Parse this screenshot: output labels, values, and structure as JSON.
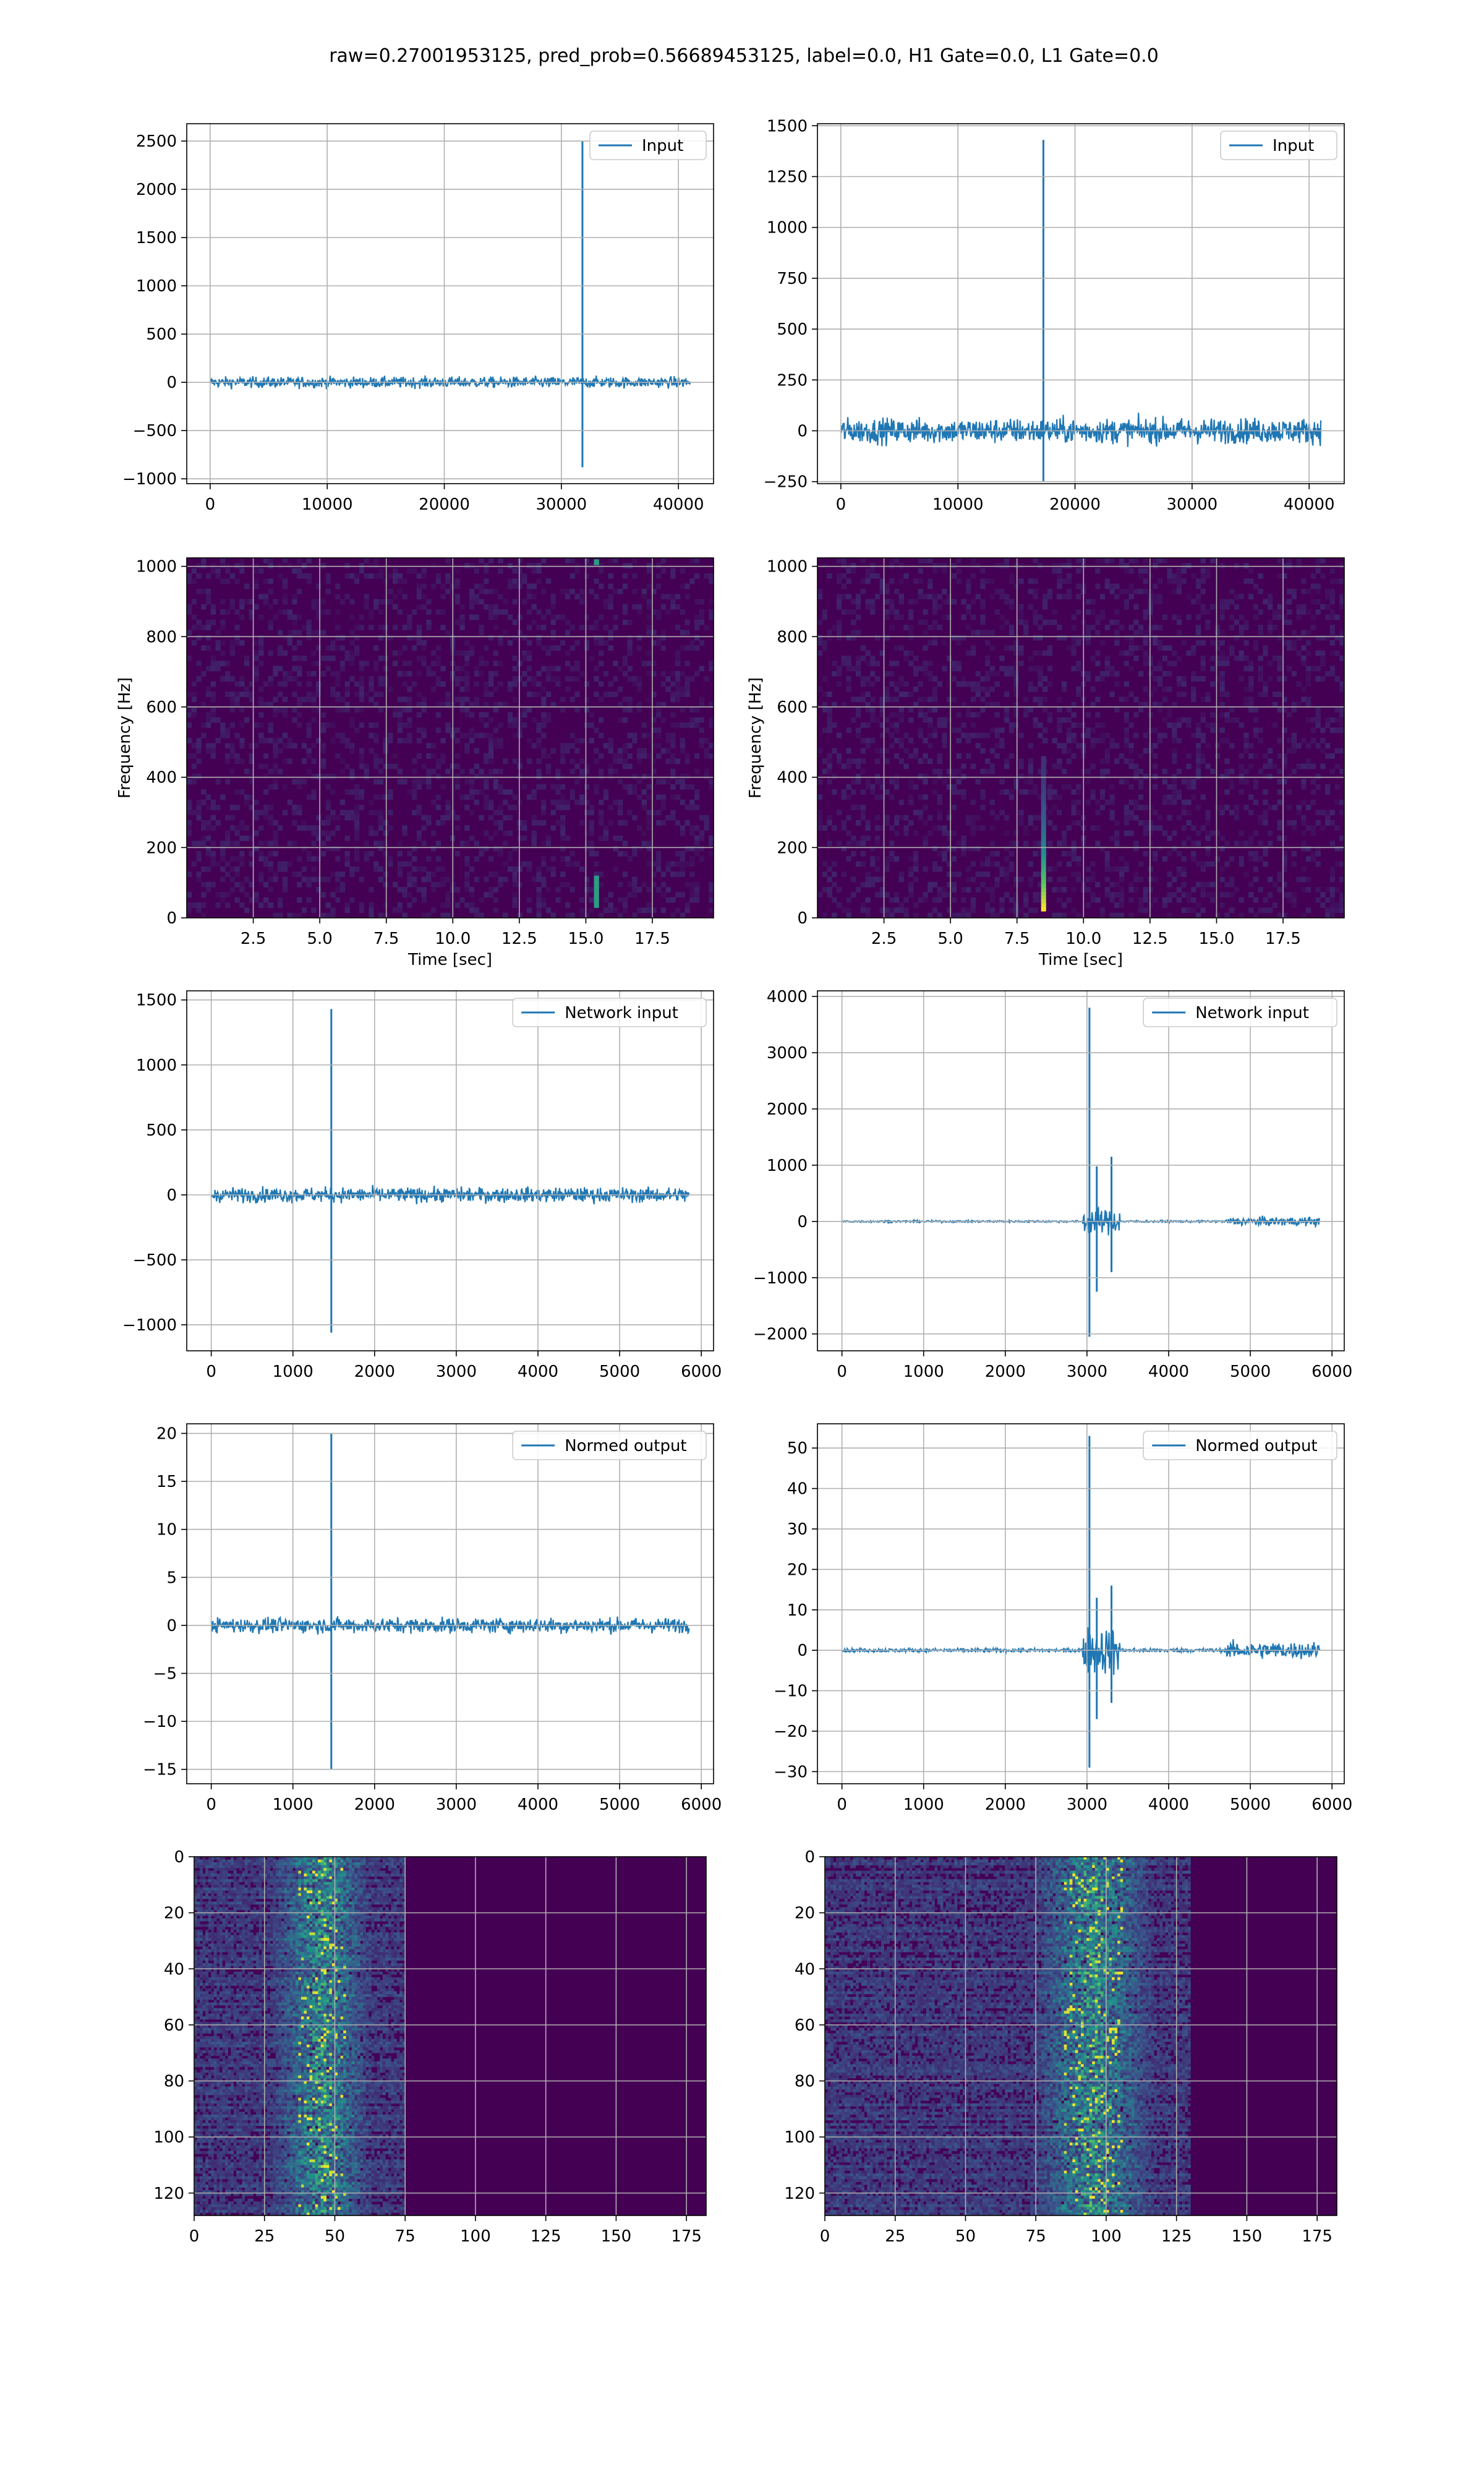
{
  "title": "raw=0.27001953125, pred_prob=0.56689453125, label=0.0, H1 Gate=0.0, L1 Gate=0.0",
  "colors": {
    "line": "#1f77b4",
    "grid": "#b0b0b0",
    "viridis_low": "#440154",
    "viridis_mid": "#21918c",
    "viridis_high": "#fde725"
  },
  "chart_data": [
    {
      "id": "r1c1",
      "type": "line",
      "legend": "Input",
      "legend_position": "upper-right",
      "xlim": [
        -2000,
        43000
      ],
      "ylim": [
        -1050,
        2680
      ],
      "xticks": [
        0,
        10000,
        20000,
        30000,
        40000
      ],
      "yticks": [
        -1000,
        -500,
        0,
        500,
        1000,
        1500,
        2000,
        2500
      ],
      "x_range": [
        0,
        41000
      ],
      "noise_amp": 55,
      "spikes": [
        {
          "x": 31800,
          "y": 2500
        },
        {
          "x": 31800,
          "y": -880
        }
      ],
      "xlabel": "",
      "ylabel": "",
      "grid": true
    },
    {
      "id": "r1c2",
      "type": "line",
      "legend": "Input",
      "legend_position": "upper-right",
      "xlim": [
        -2000,
        43000
      ],
      "ylim": [
        -260,
        1510
      ],
      "xticks": [
        0,
        10000,
        20000,
        30000,
        40000
      ],
      "yticks": [
        -250,
        0,
        250,
        500,
        750,
        1000,
        1250,
        1500
      ],
      "x_range": [
        0,
        41000
      ],
      "noise_amp": 60,
      "spikes": [
        {
          "x": 17300,
          "y": 1430
        },
        {
          "x": 17300,
          "y": -250
        }
      ],
      "xlabel": "",
      "ylabel": "",
      "grid": true
    },
    {
      "id": "r2c1",
      "type": "heatmap",
      "xlabel": "Time [sec]",
      "ylabel": "Frequency [Hz]",
      "xlim": [
        0,
        19.8
      ],
      "ylim": [
        0,
        1024
      ],
      "xticks": [
        2.5,
        5.0,
        7.5,
        10.0,
        12.5,
        15.0,
        17.5
      ],
      "xtick_labels": [
        "2.5",
        "5.0",
        "7.5",
        "10.0",
        "12.5",
        "15.0",
        "17.5"
      ],
      "yticks": [
        0,
        200,
        400,
        600,
        800,
        1000
      ],
      "features": [
        {
          "t": 15.4,
          "f_low": 30,
          "f_high": 120
        },
        {
          "t": 15.4,
          "f_low": 1005,
          "f_high": 1020
        }
      ],
      "grid": true
    },
    {
      "id": "r2c2",
      "type": "heatmap",
      "xlabel": "Time [sec]",
      "ylabel": "Frequency [Hz]",
      "xlim": [
        0,
        19.8
      ],
      "ylim": [
        0,
        1024
      ],
      "xticks": [
        2.5,
        5.0,
        7.5,
        10.0,
        12.5,
        15.0,
        17.5
      ],
      "xtick_labels": [
        "2.5",
        "5.0",
        "7.5",
        "10.0",
        "12.5",
        "15.0",
        "17.5"
      ],
      "yticks": [
        0,
        200,
        400,
        600,
        800,
        1000
      ],
      "features": [
        {
          "t": 8.5,
          "f_low": 20,
          "f_high": 460
        }
      ],
      "grid": true
    },
    {
      "id": "r3c1",
      "type": "line",
      "legend": "Network input",
      "legend_position": "upper-right",
      "xlim": [
        -300,
        6150
      ],
      "ylim": [
        -1200,
        1570
      ],
      "xticks": [
        0,
        1000,
        2000,
        3000,
        4000,
        5000,
        6000
      ],
      "yticks": [
        -1000,
        -500,
        0,
        500,
        1000,
        1500
      ],
      "x_range": [
        0,
        5850
      ],
      "noise_amp": 55,
      "spikes": [
        {
          "x": 1470,
          "y": 1430
        },
        {
          "x": 1470,
          "y": -1060
        }
      ],
      "xlabel": "",
      "ylabel": "",
      "grid": true
    },
    {
      "id": "r3c2",
      "type": "line",
      "legend": "Network input",
      "legend_position": "upper-right",
      "xlim": [
        -300,
        6150
      ],
      "ylim": [
        -2300,
        4100
      ],
      "xticks": [
        0,
        1000,
        2000,
        3000,
        4000,
        5000,
        6000
      ],
      "yticks": [
        -2000,
        -1000,
        0,
        1000,
        2000,
        3000,
        4000
      ],
      "x_range": [
        0,
        5850
      ],
      "noise_amp": 15,
      "spikes": [
        {
          "x": 3030,
          "y": 3800
        },
        {
          "x": 3030,
          "y": -2050
        },
        {
          "x": 3120,
          "y": 980
        },
        {
          "x": 3120,
          "y": -1250
        },
        {
          "x": 3300,
          "y": 1150
        },
        {
          "x": 3300,
          "y": -900
        }
      ],
      "xlabel": "",
      "ylabel": "",
      "grid": true
    },
    {
      "id": "r4c1",
      "type": "line",
      "legend": "Normed output",
      "legend_position": "upper-right",
      "xlim": [
        -300,
        6150
      ],
      "ylim": [
        -16.5,
        21.0
      ],
      "xticks": [
        0,
        1000,
        2000,
        3000,
        4000,
        5000,
        6000
      ],
      "yticks": [
        -15,
        -10,
        -5,
        0,
        5,
        10,
        15,
        20
      ],
      "x_range": [
        0,
        5850
      ],
      "noise_amp": 0.75,
      "spikes": [
        {
          "x": 1470,
          "y": 20
        },
        {
          "x": 1470,
          "y": -15
        }
      ],
      "xlabel": "",
      "ylabel": "",
      "grid": true
    },
    {
      "id": "r4c2",
      "type": "line",
      "legend": "Normed output",
      "legend_position": "upper-right",
      "xlim": [
        -300,
        6150
      ],
      "ylim": [
        -33,
        56
      ],
      "xticks": [
        0,
        1000,
        2000,
        3000,
        4000,
        5000,
        6000
      ],
      "yticks": [
        -30,
        -20,
        -10,
        0,
        10,
        20,
        30,
        40,
        50
      ],
      "x_range": [
        0,
        5850
      ],
      "noise_amp": 0.4,
      "spikes": [
        {
          "x": 3030,
          "y": 53
        },
        {
          "x": 3030,
          "y": -29
        },
        {
          "x": 3120,
          "y": 13
        },
        {
          "x": 3120,
          "y": -17
        },
        {
          "x": 3300,
          "y": 16
        },
        {
          "x": 3300,
          "y": -13
        }
      ],
      "xlabel": "",
      "ylabel": "",
      "grid": true
    },
    {
      "id": "r5c1",
      "type": "heatmap",
      "xlim": [
        0,
        182
      ],
      "ylim": [
        128,
        0
      ],
      "xticks": [
        0,
        25,
        50,
        75,
        100,
        125,
        150,
        175
      ],
      "xtick_labels": [
        "0",
        "25",
        "50",
        "75",
        "100",
        "125",
        "150",
        "175"
      ],
      "yticks": [
        0,
        20,
        40,
        60,
        80,
        100,
        120
      ],
      "band_center": 45,
      "band_width": 18,
      "active_extent": 75,
      "xlabel": "",
      "ylabel": "",
      "grid": true
    },
    {
      "id": "r5c2",
      "type": "heatmap",
      "xlim": [
        0,
        182
      ],
      "ylim": [
        128,
        0
      ],
      "xticks": [
        0,
        25,
        50,
        75,
        100,
        125,
        150,
        175
      ],
      "xtick_labels": [
        "0",
        "25",
        "50",
        "75",
        "100",
        "125",
        "150",
        "175"
      ],
      "yticks": [
        0,
        20,
        40,
        60,
        80,
        100,
        120
      ],
      "band_center": 95,
      "band_width": 22,
      "active_extent": 130,
      "xlabel": "",
      "ylabel": "",
      "grid": true
    }
  ]
}
